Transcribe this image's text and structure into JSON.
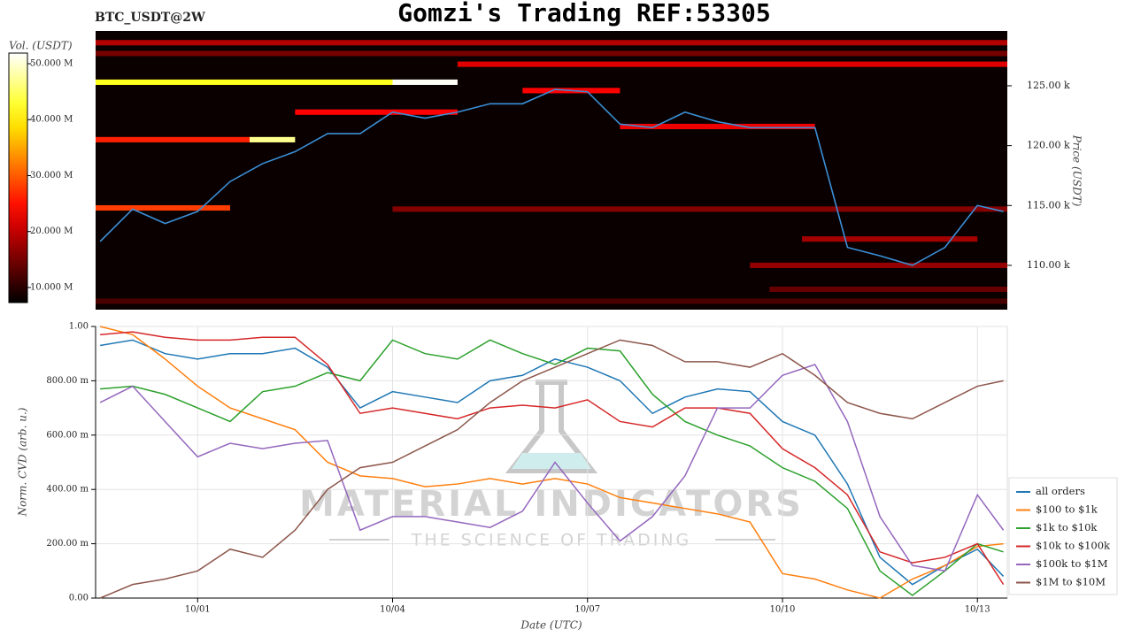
{
  "chart_data": [
    {
      "type": "heatmap",
      "title": "Gomzi's Trading REF:53305",
      "label": "BTC_USDT@2W",
      "colorbar_label": "Vol. (USDT)",
      "ylabel": "Price (USDT)",
      "x": [
        -0.5,
        0,
        0.5,
        1,
        1.5,
        2,
        2.5,
        3,
        3.5,
        4,
        4.5,
        5,
        5.5,
        6,
        6.5,
        7,
        7.5,
        8,
        8.5,
        9,
        9.5,
        10,
        10.5,
        11,
        11.5,
        12,
        12.5,
        13,
        13.4
      ],
      "values": [
        112000,
        114700,
        113500,
        114500,
        117000,
        118500,
        119500,
        121000,
        121000,
        122800,
        122300,
        122800,
        123500,
        123500,
        124700,
        124500,
        121800,
        121500,
        122800,
        122000,
        121500,
        121500,
        121500,
        111500,
        110800,
        110000,
        111500,
        115000,
        114500
      ],
      "color": "#3a8fd6",
      "xlim": [
        -0.57,
        13.46
      ],
      "ylim": [
        106300,
        129580
      ],
      "yticks": [
        {
          "value": 110000,
          "label": "110.00 k"
        },
        {
          "value": 115000,
          "label": "115.00 k"
        },
        {
          "value": 120000,
          "label": "120.00 k"
        },
        {
          "value": 125000,
          "label": "125.00 k"
        }
      ],
      "colormap": "hot",
      "clim": [
        7300000,
        51900000
      ],
      "cticks": [
        {
          "value": 10000000,
          "label": "10.000 M"
        },
        {
          "value": 20000000,
          "label": "20.000 M"
        },
        {
          "value": 30000000,
          "label": "30.000 M"
        },
        {
          "value": 40000000,
          "label": "40.000 M"
        },
        {
          "value": 50000000,
          "label": "50.000 M"
        }
      ],
      "price_bin": 450,
      "cells": [
        {
          "x0": -0.57,
          "x1": 4.0,
          "price": 125300,
          "volume": 42000000
        },
        {
          "x0": 4.0,
          "x1": 5.0,
          "price": 125300,
          "volume": 51500000
        },
        {
          "x0": -0.57,
          "x1": 1.8,
          "price": 120500,
          "volume": 26000000
        },
        {
          "x0": 1.8,
          "x1": 2.5,
          "price": 120500,
          "volume": 47000000
        },
        {
          "x0": 2.5,
          "x1": 5.0,
          "price": 122800,
          "volume": 24000000
        },
        {
          "x0": -0.57,
          "x1": 1.5,
          "price": 114800,
          "volume": 28000000
        },
        {
          "x0": 5.0,
          "x1": 13.46,
          "price": 126800,
          "volume": 22000000
        },
        {
          "x0": -0.57,
          "x1": 13.46,
          "price": 128600,
          "volume": 19000000
        },
        {
          "x0": -0.57,
          "x1": 13.46,
          "price": 127700,
          "volume": 15000000
        },
        {
          "x0": 6.0,
          "x1": 7.5,
          "price": 124600,
          "volume": 24000000
        },
        {
          "x0": 7.5,
          "x1": 10.5,
          "price": 121600,
          "volume": 23000000
        },
        {
          "x0": 4.0,
          "x1": 13.46,
          "price": 114700,
          "volume": 16000000
        },
        {
          "x0": 9.5,
          "x1": 13.46,
          "price": 110000,
          "volume": 17000000
        },
        {
          "x0": 9.8,
          "x1": 13.46,
          "price": 108000,
          "volume": 14000000
        },
        {
          "x0": -0.57,
          "x1": 13.46,
          "price": 107000,
          "volume": 12000000
        },
        {
          "x0": 10.3,
          "x1": 13.0,
          "price": 112200,
          "volume": 18000000
        }
      ]
    },
    {
      "type": "line",
      "xlabel": "Date (UTC)",
      "ylabel": "Norm. CVD (arb. u.)",
      "watermark": "MATERIAL INDICATORS",
      "watermark_sub": "THE SCIENCE OF TRADING",
      "x": [
        -0.5,
        0,
        0.5,
        1,
        1.5,
        2,
        2.5,
        3,
        3.5,
        4,
        4.5,
        5,
        5.5,
        6,
        6.5,
        7,
        7.5,
        8,
        8.5,
        9,
        9.5,
        10,
        10.5,
        11,
        11.5,
        12,
        12.5,
        13,
        13.4
      ],
      "xlim": [
        -0.57,
        13.46
      ],
      "ylim": [
        0,
        1
      ],
      "xticks": [
        {
          "value": 1,
          "label": "10/01"
        },
        {
          "value": 4,
          "label": "10/04"
        },
        {
          "value": 7,
          "label": "10/07"
        },
        {
          "value": 10,
          "label": "10/10"
        },
        {
          "value": 13,
          "label": "10/13"
        }
      ],
      "yticks": [
        {
          "value": 0,
          "label": "0.00"
        },
        {
          "value": 0.2,
          "label": "200.00 m"
        },
        {
          "value": 0.4,
          "label": "400.00 m"
        },
        {
          "value": 0.6,
          "label": "600.00 m"
        },
        {
          "value": 0.8,
          "label": "800.00 m"
        },
        {
          "value": 1,
          "label": "1.00"
        }
      ],
      "grid": true,
      "legend": "lower right",
      "series": [
        {
          "name": "all orders",
          "color": "#1f77b4",
          "values": [
            0.93,
            0.95,
            0.9,
            0.88,
            0.9,
            0.9,
            0.92,
            0.85,
            0.7,
            0.76,
            0.74,
            0.72,
            0.8,
            0.82,
            0.88,
            0.85,
            0.8,
            0.68,
            0.74,
            0.77,
            0.76,
            0.65,
            0.6,
            0.42,
            0.15,
            0.05,
            0.12,
            0.18,
            0.08
          ]
        },
        {
          "name": "$100 to $1k",
          "color": "#ff7f0e",
          "values": [
            1.0,
            0.97,
            0.88,
            0.78,
            0.7,
            0.66,
            0.62,
            0.5,
            0.45,
            0.44,
            0.41,
            0.42,
            0.44,
            0.42,
            0.44,
            0.42,
            0.37,
            0.35,
            0.33,
            0.31,
            0.28,
            0.09,
            0.07,
            0.03,
            0.0,
            0.07,
            0.12,
            0.19,
            0.2
          ]
        },
        {
          "name": "$1k to $10k",
          "color": "#2ca02c",
          "values": [
            0.77,
            0.78,
            0.75,
            0.7,
            0.65,
            0.76,
            0.78,
            0.83,
            0.8,
            0.95,
            0.9,
            0.88,
            0.95,
            0.9,
            0.86,
            0.92,
            0.91,
            0.75,
            0.65,
            0.6,
            0.56,
            0.48,
            0.43,
            0.33,
            0.1,
            0.01,
            0.1,
            0.2,
            0.17
          ]
        },
        {
          "name": "$10k to $100k",
          "color": "#d62728",
          "values": [
            0.97,
            0.98,
            0.96,
            0.95,
            0.95,
            0.96,
            0.96,
            0.86,
            0.68,
            0.7,
            0.68,
            0.66,
            0.7,
            0.71,
            0.7,
            0.73,
            0.65,
            0.63,
            0.7,
            0.7,
            0.68,
            0.55,
            0.48,
            0.38,
            0.17,
            0.13,
            0.15,
            0.2,
            0.05
          ]
        },
        {
          "name": "$100k to $1M",
          "color": "#9467bd",
          "values": [
            0.72,
            0.78,
            0.65,
            0.52,
            0.57,
            0.55,
            0.57,
            0.58,
            0.25,
            0.3,
            0.3,
            0.28,
            0.26,
            0.32,
            0.5,
            0.35,
            0.21,
            0.3,
            0.45,
            0.7,
            0.7,
            0.82,
            0.86,
            0.65,
            0.3,
            0.12,
            0.1,
            0.38,
            0.25
          ]
        },
        {
          "name": "$1M to $10M",
          "color": "#8c564b",
          "values": [
            0.0,
            0.05,
            0.07,
            0.1,
            0.18,
            0.15,
            0.25,
            0.4,
            0.48,
            0.5,
            0.56,
            0.62,
            0.72,
            0.8,
            0.85,
            0.9,
            0.95,
            0.93,
            0.87,
            0.87,
            0.85,
            0.9,
            0.82,
            0.72,
            0.68,
            0.66,
            0.72,
            0.78,
            0.8
          ]
        }
      ]
    }
  ]
}
